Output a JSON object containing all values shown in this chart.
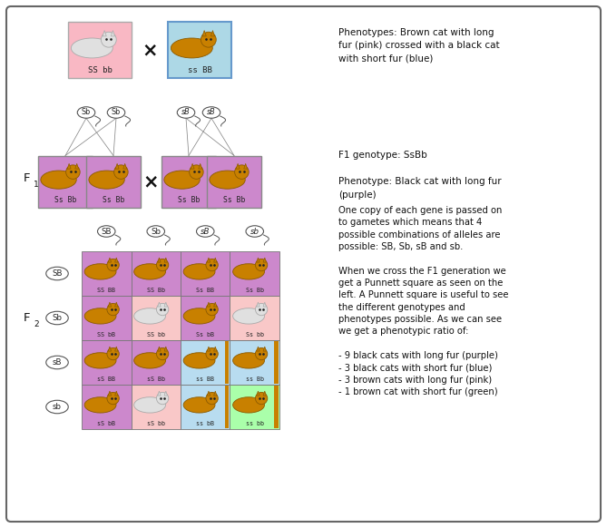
{
  "pink_color": "#f9b8c4",
  "blue_color": "#add8e6",
  "purple_color": "#cc88cc",
  "light_pink_color": "#f9c8c8",
  "light_blue_color": "#b8dcf0",
  "green_color": "#aaffaa",
  "right_text_1": "Phenotypes: Brown cat with long\nfur (pink) crossed with a black cat\nwith short fur (blue)",
  "right_text_2": "F1 genotype: SsBb\n\nPhenotype: Black cat with long fur\n(purple)",
  "right_text_3": "One copy of each gene is passed on\nto gametes which means that 4\npossible combinations of alleles are\npossible: SB, Sb, sB and sb.\n\nWhen we cross the F1 generation we\nget a Punnett square as seen on the\nleft. A Punnett square is useful to see\nthe different genotypes and\nphenotypes possible. As we can see\nwe get a phenotypic ratio of:\n\n- 9 black cats with long fur (purple)\n- 3 black cats with short fur (blue)\n- 3 brown cats with long fur (pink)\n- 1 brown cat with short fur (green)",
  "p_parent1_label": "SS bb",
  "p_parent2_label": "ss BB",
  "f1_label": "Ss Bb",
  "p_gametes_left": [
    "Sb",
    "Sb"
  ],
  "p_gametes_right": [
    "sB",
    "sB"
  ],
  "f2_col_gametes": [
    "SB",
    "Sb",
    "sB",
    "sb"
  ],
  "f2_row_gametes": [
    "SB",
    "Sb",
    "sB",
    "sb"
  ],
  "f2_genotypes": [
    [
      "SS BB",
      "SS Bb",
      "Ss BB",
      "Ss Bb"
    ],
    [
      "SS bB",
      "SS bb",
      "Ss bB",
      "Ss bb"
    ],
    [
      "sS BB",
      "sS Bb",
      "ss BB",
      "ss Bb"
    ],
    [
      "sS bB",
      "sS bb",
      "ss bB",
      "ss bb"
    ]
  ],
  "f2_colors": [
    [
      "purple",
      "purple",
      "purple",
      "purple"
    ],
    [
      "purple",
      "pink",
      "purple",
      "pink"
    ],
    [
      "purple",
      "purple",
      "blue",
      "blue"
    ],
    [
      "purple",
      "pink",
      "blue",
      "green"
    ]
  ]
}
